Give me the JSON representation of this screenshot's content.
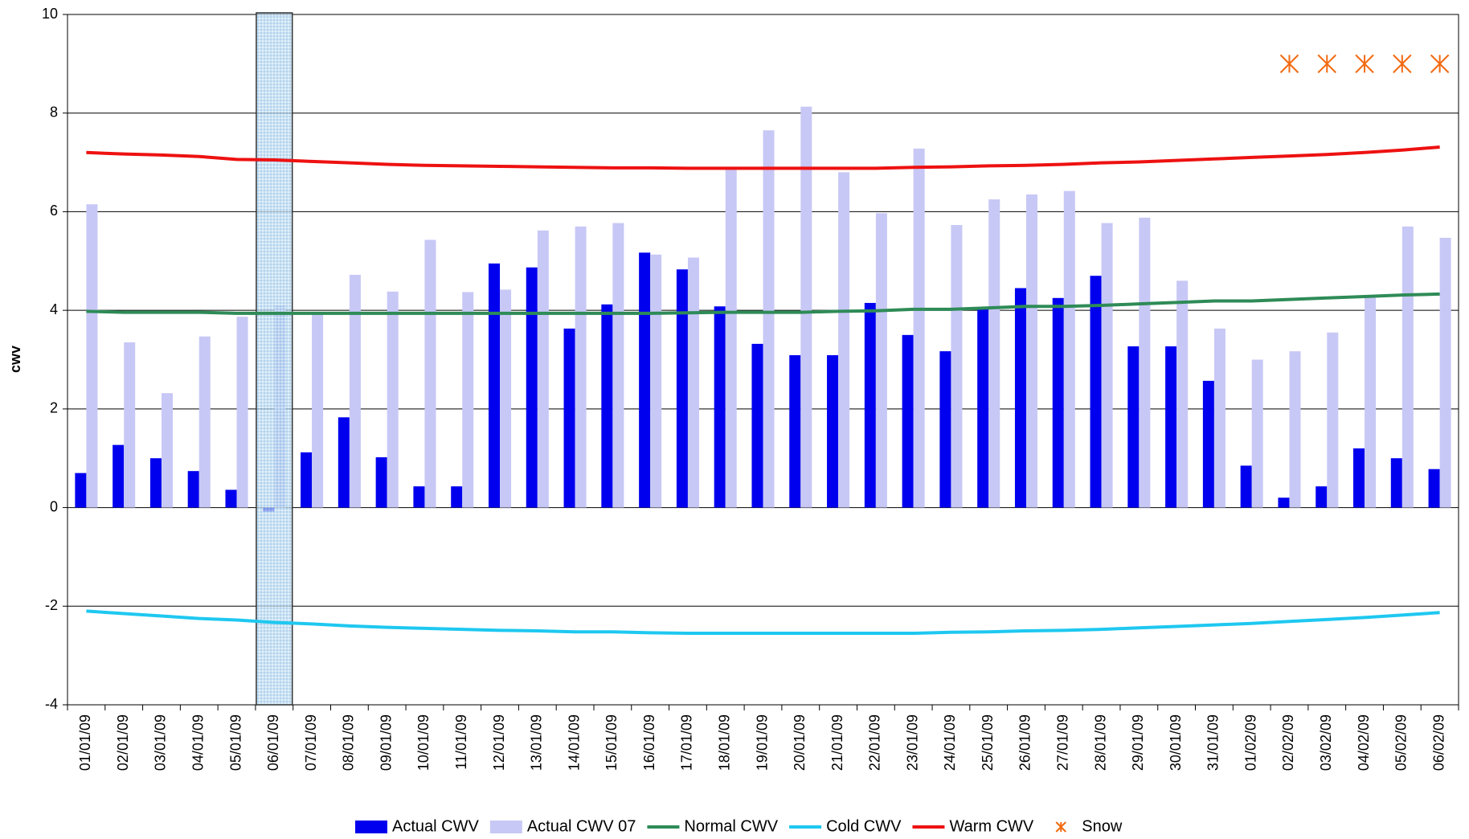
{
  "chart_data": {
    "type": "bar_line",
    "y_label": "cwv",
    "categories": [
      "01/01/09",
      "02/01/09",
      "03/01/09",
      "04/01/09",
      "05/01/09",
      "06/01/09",
      "07/01/09",
      "08/01/09",
      "09/01/09",
      "10/01/09",
      "11/01/09",
      "12/01/09",
      "13/01/09",
      "14/01/09",
      "15/01/09",
      "16/01/09",
      "17/01/09",
      "18/01/09",
      "19/01/09",
      "20/01/09",
      "21/01/09",
      "22/01/09",
      "23/01/09",
      "24/01/09",
      "25/01/09",
      "26/01/09",
      "27/01/09",
      "28/01/09",
      "29/01/09",
      "30/01/09",
      "31/01/09",
      "01/02/09",
      "02/02/09",
      "03/02/09",
      "04/02/09",
      "05/02/09",
      "06/02/09"
    ],
    "ylim": [
      -4,
      10
    ],
    "yticks": [
      -4,
      -2,
      0,
      2,
      4,
      6,
      8,
      10
    ],
    "grid": true,
    "legend": "bottom",
    "series": [
      {
        "name": "Actual CWV",
        "kind": "bar",
        "color": "#0000ee",
        "values": [
          0.7,
          1.27,
          1.0,
          0.74,
          0.36,
          -0.08,
          1.12,
          1.83,
          1.02,
          0.43,
          0.43,
          4.95,
          4.87,
          3.63,
          4.12,
          5.17,
          4.83,
          4.08,
          3.32,
          3.09,
          3.09,
          4.15,
          3.5,
          3.17,
          4.05,
          4.45,
          4.25,
          4.7,
          3.27,
          3.27,
          2.57,
          0.85,
          0.2,
          0.43,
          1.2,
          1.0,
          0.78
        ]
      },
      {
        "name": "Actual CWV 07",
        "kind": "bar",
        "color": "#c8c8f6",
        "values": [
          6.15,
          3.35,
          2.32,
          3.47,
          3.87,
          4.1,
          3.95,
          4.72,
          4.38,
          5.43,
          4.37,
          4.42,
          5.62,
          5.7,
          5.77,
          5.13,
          5.07,
          6.85,
          7.65,
          8.13,
          6.8,
          5.97,
          7.28,
          5.73,
          6.25,
          6.35,
          6.42,
          5.77,
          5.88,
          4.6,
          3.63,
          3.0,
          3.17,
          3.55,
          4.27,
          5.7,
          5.47
        ]
      },
      {
        "name": "Normal CWV",
        "kind": "line",
        "color": "#2e8b57",
        "values": [
          3.98,
          3.96,
          3.96,
          3.96,
          3.94,
          3.94,
          3.94,
          3.94,
          3.94,
          3.94,
          3.94,
          3.94,
          3.94,
          3.94,
          3.94,
          3.94,
          3.95,
          3.96,
          3.96,
          3.96,
          3.98,
          3.99,
          4.02,
          4.02,
          4.05,
          4.08,
          4.08,
          4.1,
          4.13,
          4.16,
          4.19,
          4.19,
          4.22,
          4.25,
          4.28,
          4.31,
          4.33
        ]
      },
      {
        "name": "Cold CWV",
        "kind": "line",
        "color": "#1ec8f0",
        "values": [
          -2.1,
          -2.15,
          -2.2,
          -2.25,
          -2.28,
          -2.33,
          -2.36,
          -2.4,
          -2.43,
          -2.45,
          -2.47,
          -2.49,
          -2.5,
          -2.52,
          -2.52,
          -2.54,
          -2.55,
          -2.55,
          -2.55,
          -2.55,
          -2.55,
          -2.55,
          -2.55,
          -2.53,
          -2.52,
          -2.5,
          -2.49,
          -2.47,
          -2.44,
          -2.41,
          -2.38,
          -2.35,
          -2.31,
          -2.27,
          -2.23,
          -2.18,
          -2.13
        ]
      },
      {
        "name": "Warm CWV",
        "kind": "line",
        "color": "#ee1111",
        "values": [
          7.2,
          7.17,
          7.15,
          7.12,
          7.06,
          7.05,
          7.02,
          6.99,
          6.96,
          6.94,
          6.93,
          6.92,
          6.91,
          6.9,
          6.89,
          6.89,
          6.88,
          6.88,
          6.88,
          6.88,
          6.88,
          6.88,
          6.9,
          6.91,
          6.93,
          6.94,
          6.96,
          6.99,
          7.01,
          7.04,
          7.07,
          7.1,
          7.13,
          7.16,
          7.2,
          7.25,
          7.31
        ]
      },
      {
        "name": "Snow",
        "kind": "marker",
        "color": "#f26a10",
        "values": [
          null,
          null,
          null,
          null,
          null,
          null,
          null,
          null,
          null,
          null,
          null,
          null,
          null,
          null,
          null,
          null,
          null,
          null,
          null,
          null,
          null,
          null,
          null,
          null,
          null,
          null,
          null,
          null,
          null,
          null,
          null,
          null,
          9,
          9,
          9,
          9,
          9
        ]
      }
    ]
  }
}
